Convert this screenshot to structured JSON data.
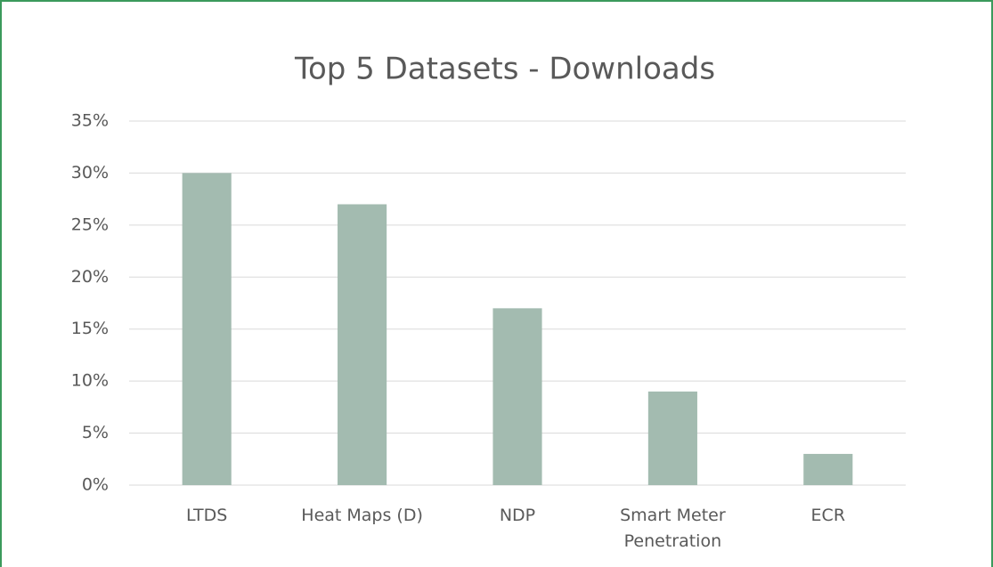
{
  "chart_data": {
    "type": "bar",
    "title": "Top 5 Datasets - Downloads",
    "categories": [
      "LTDS",
      "Heat Maps (D)",
      "NDP",
      "Smart Meter Penetration",
      "ECR"
    ],
    "values": [
      30,
      27,
      17,
      9,
      3
    ],
    "color": "#a3bbb0",
    "ylim": [
      0,
      35
    ],
    "yticks": [
      {
        "value": 0,
        "label": "0%"
      },
      {
        "value": 5,
        "label": "5%"
      },
      {
        "value": 10,
        "label": "10%"
      },
      {
        "value": 15,
        "label": "15%"
      },
      {
        "value": 20,
        "label": "20%"
      },
      {
        "value": 25,
        "label": "25%"
      },
      {
        "value": 30,
        "label": "30%"
      },
      {
        "value": 35,
        "label": "35%"
      }
    ],
    "grid": true
  }
}
